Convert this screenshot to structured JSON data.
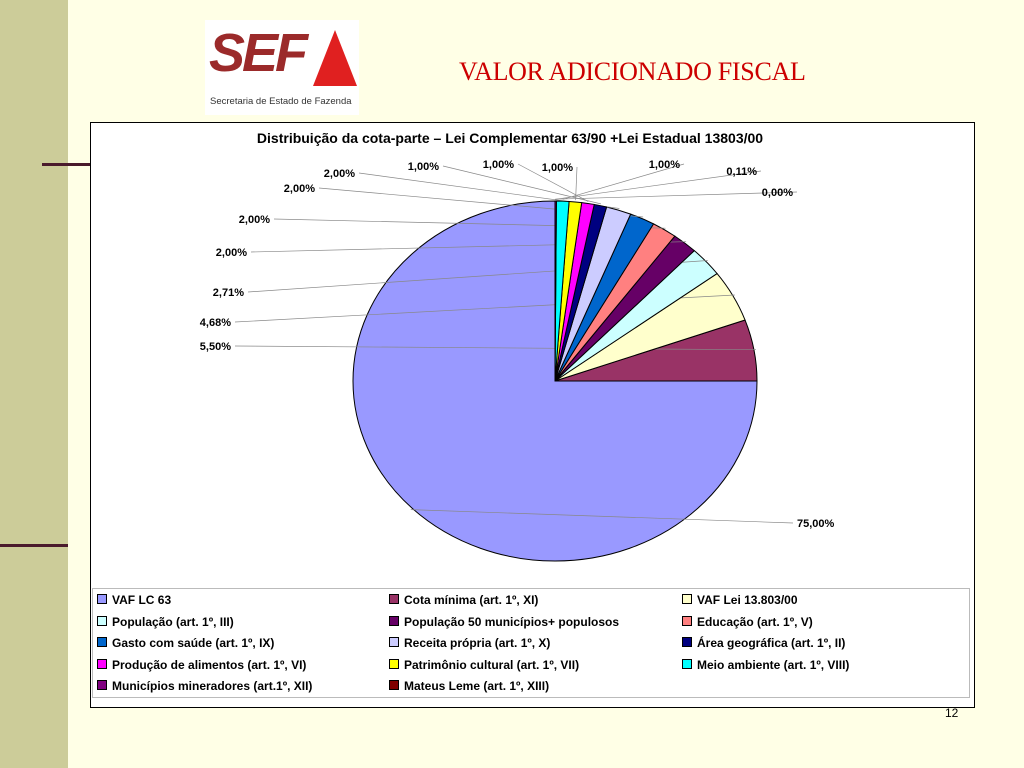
{
  "slide": {
    "title": "VALOR ADICIONADO FISCAL",
    "page_number": "12"
  },
  "logo": {
    "text": "SEF",
    "subtitle": "Secretaria de Estado de Fazenda"
  },
  "chart_data": {
    "type": "pie",
    "title": "Distribuição da cota-parte – Lei Complementar 63/90 +Lei Estadual 13803/00",
    "legend_position": "bottom",
    "slices": [
      {
        "name": "VAF LC 63",
        "value": 75.0,
        "label": "75,00%",
        "color": "#9999FF"
      },
      {
        "name": "Cota mínima (art. 1º, XI)",
        "value": 5.5,
        "label": "5,50%",
        "color": "#993366"
      },
      {
        "name": "VAF Lei 13.803/00",
        "value": 4.68,
        "label": "4,68%",
        "color": "#FFFFCC"
      },
      {
        "name": "População (art. 1º, III)",
        "value": 2.71,
        "label": "2,71%",
        "color": "#CCFFFF"
      },
      {
        "name": "População 50 municípios+ populosos",
        "value": 2.0,
        "label": "2,00%",
        "color": "#660066"
      },
      {
        "name": "Educação (art. 1º, V)",
        "value": 2.0,
        "label": "2,00%",
        "color": "#FF8080"
      },
      {
        "name": "Gasto com saúde (art. 1º, IX)",
        "value": 2.0,
        "label": "2,00%",
        "color": "#0066CC"
      },
      {
        "name": "Receita própria (art. 1º, X)",
        "value": 2.0,
        "label": "2,00%",
        "color": "#CCCCFF"
      },
      {
        "name": "Área geográfica (art. 1º, II)",
        "value": 1.0,
        "label": "1,00%",
        "color": "#000080"
      },
      {
        "name": "Produção de alimentos (art. 1º, VI)",
        "value": 1.0,
        "label": "1,00%",
        "color": "#FF00FF"
      },
      {
        "name": "Patrimônio cultural (art. 1º, VII)",
        "value": 1.0,
        "label": "1,00%",
        "color": "#FFFF00"
      },
      {
        "name": "Meio ambiente (art. 1º, VIII)",
        "value": 1.0,
        "label": "1,00%",
        "color": "#00FFFF"
      },
      {
        "name": "Municípios mineradores (art.1º, XII)",
        "value": 0.11,
        "label": "0,11%",
        "color": "#800080"
      },
      {
        "name": "Mateus Leme (art. 1º, XIII)",
        "value": 0.0,
        "label": "0,00%",
        "color": "#800000"
      }
    ]
  }
}
